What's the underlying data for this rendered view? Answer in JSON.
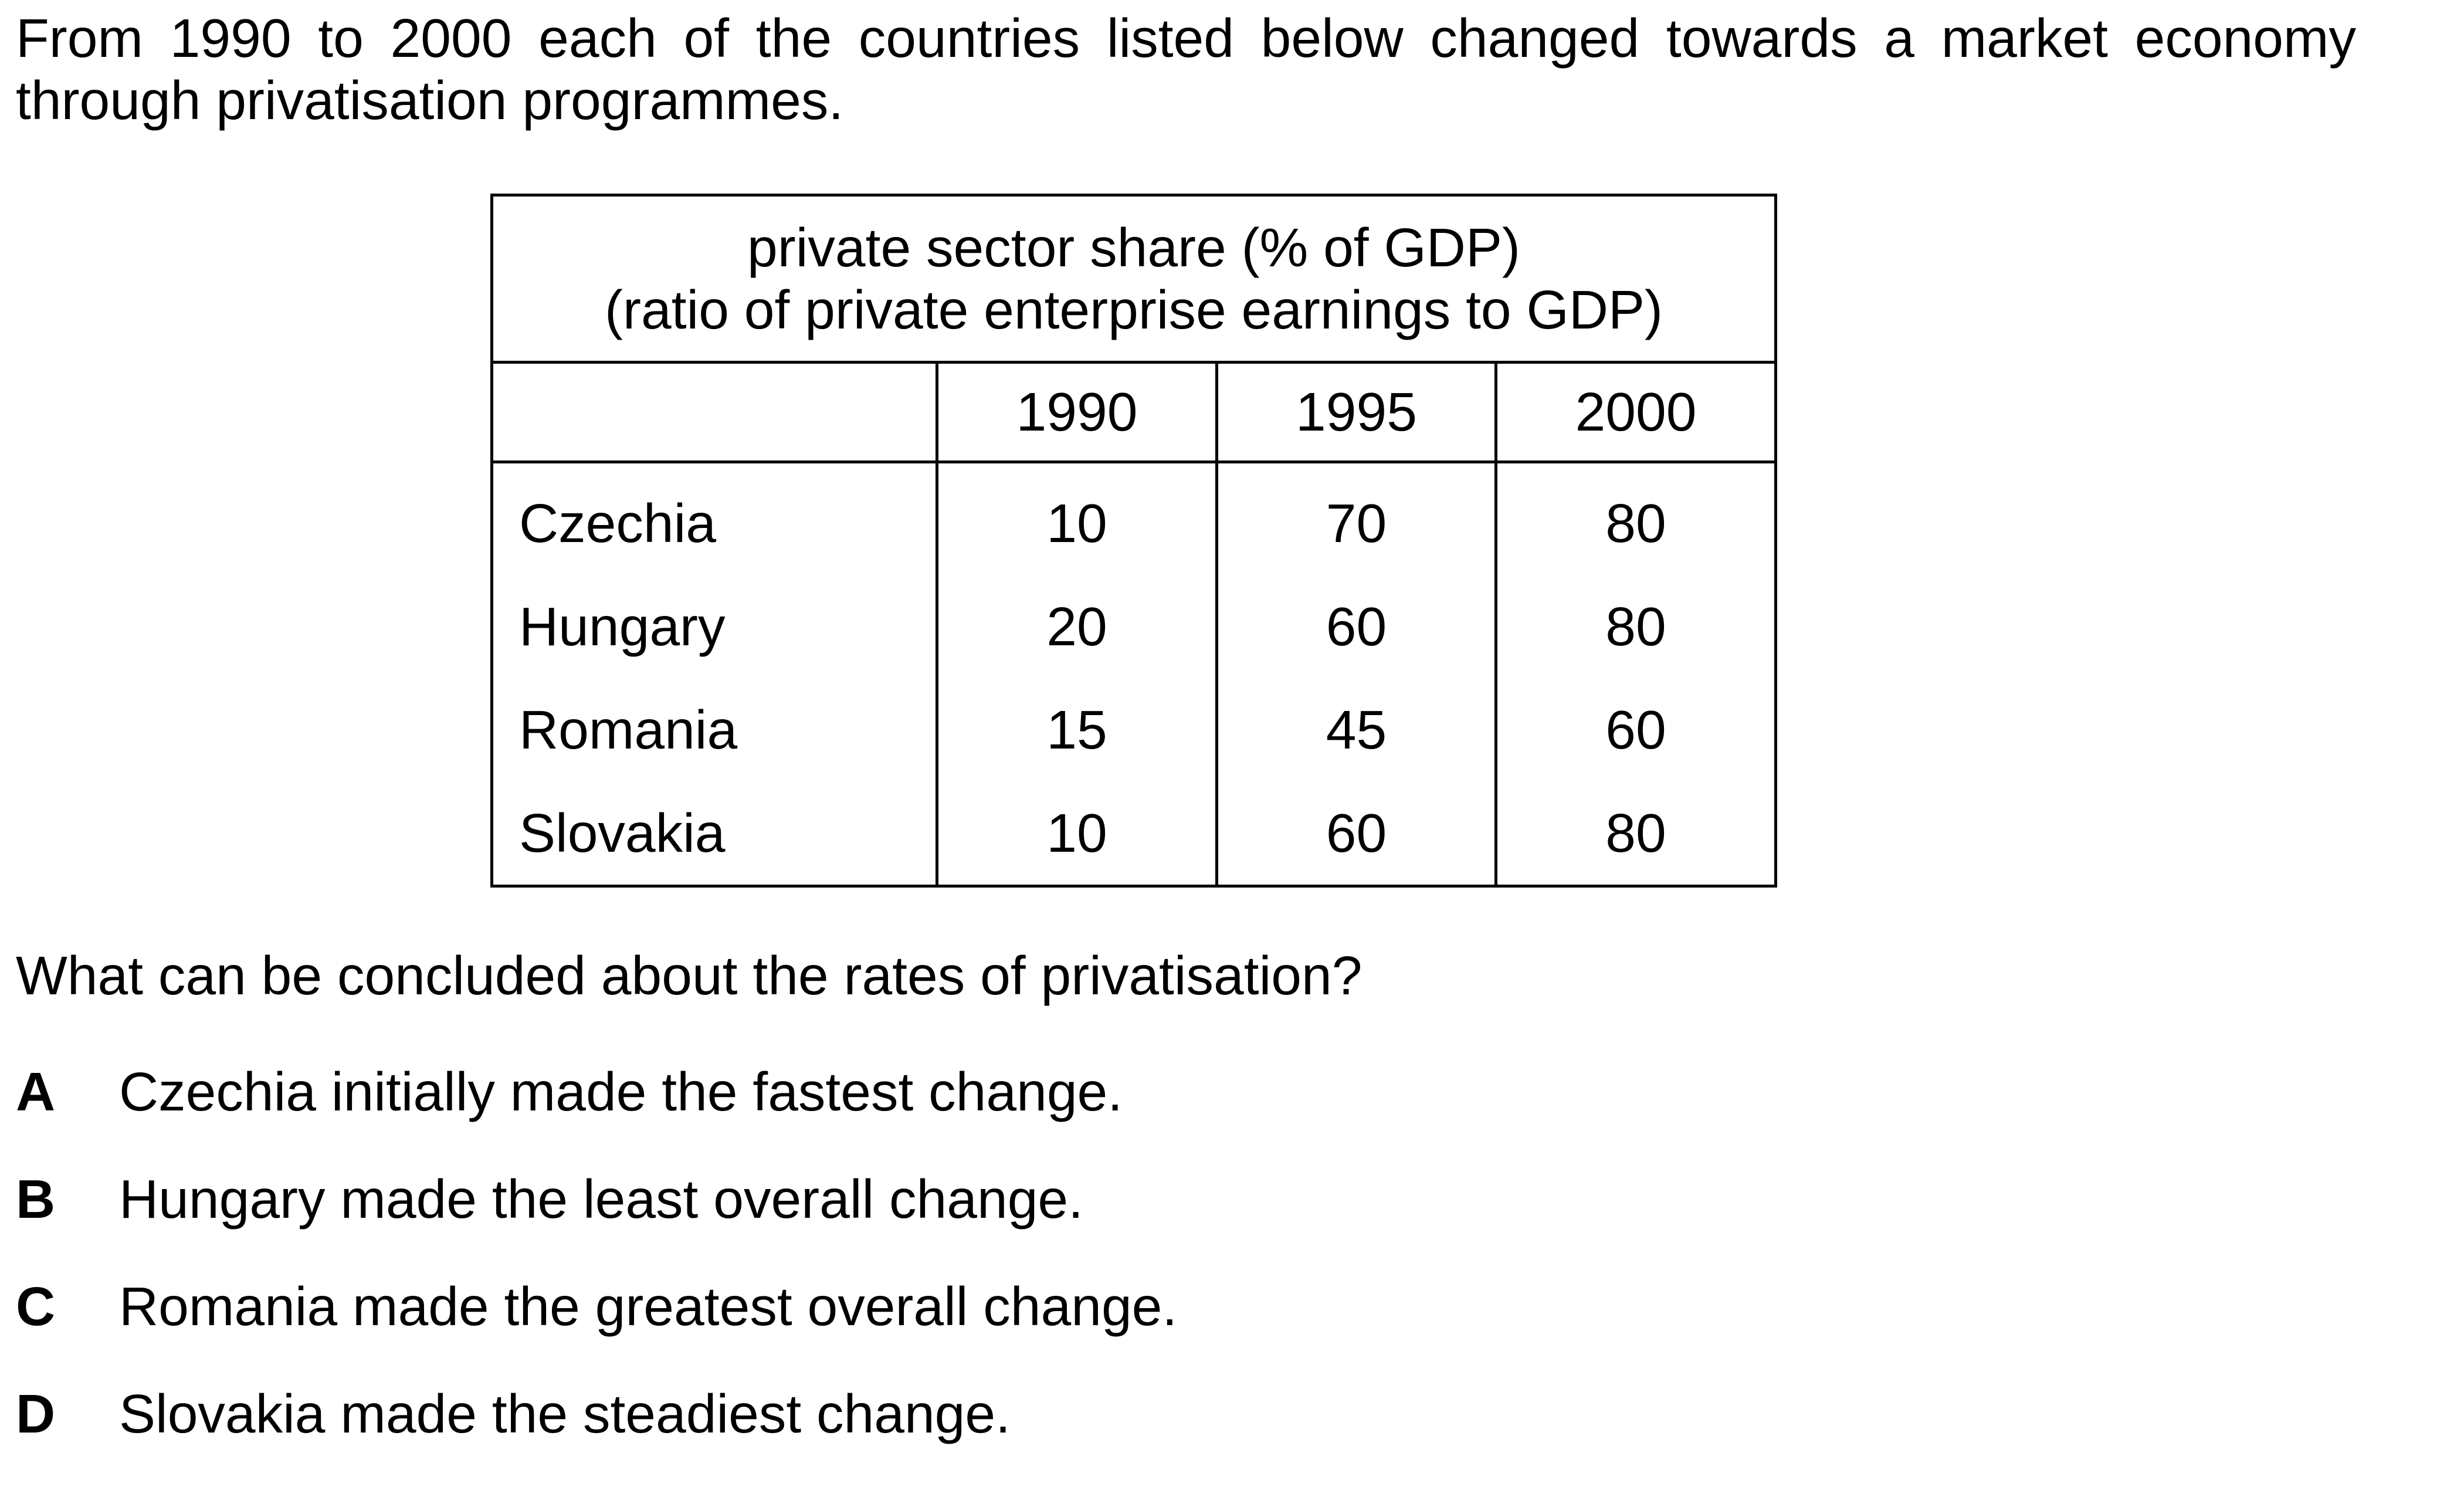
{
  "intro": "From 1990 to 2000 each of the countries listed below changed towards a market economy through privatisation programmes.",
  "table": {
    "caption_line1": "private sector share (% of GDP)",
    "caption_line2": "(ratio of private enterprise earnings to GDP)",
    "years": [
      "1990",
      "1995",
      "2000"
    ],
    "rows": [
      {
        "country": "Czechia",
        "values": [
          "10",
          "70",
          "80"
        ]
      },
      {
        "country": "Hungary",
        "values": [
          "20",
          "60",
          "80"
        ]
      },
      {
        "country": "Romania",
        "values": [
          "15",
          "45",
          "60"
        ]
      },
      {
        "country": "Slovakia",
        "values": [
          "10",
          "60",
          "80"
        ]
      }
    ]
  },
  "question": "What can be concluded about the rates of privatisation?",
  "options": [
    {
      "letter": "A",
      "text": "Czechia initially made the fastest change."
    },
    {
      "letter": "B",
      "text": "Hungary made the least overall change."
    },
    {
      "letter": "C",
      "text": "Romania made the greatest overall change."
    },
    {
      "letter": "D",
      "text": "Slovakia made the steadiest change."
    }
  ]
}
